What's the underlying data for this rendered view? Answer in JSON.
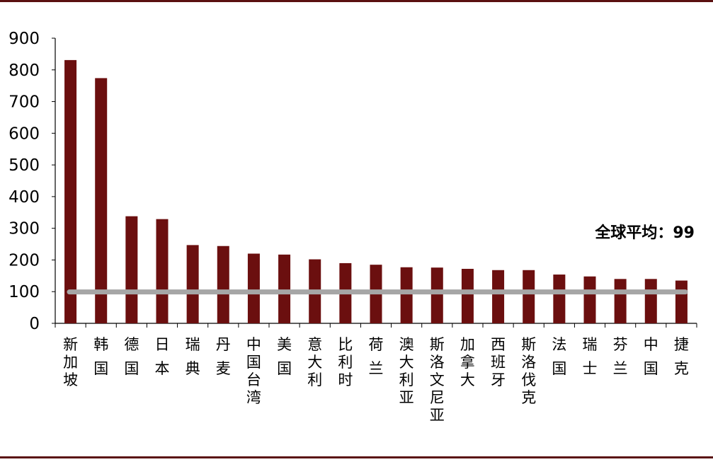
{
  "chart_data": {
    "type": "bar",
    "title": "",
    "xlabel": "",
    "ylabel": "",
    "ylim": [
      0,
      900
    ],
    "yticks": [
      0,
      100,
      200,
      300,
      400,
      500,
      600,
      700,
      800,
      900
    ],
    "grid": false,
    "categories": [
      "新加坡",
      "韩国",
      "德国",
      "日本",
      "瑞典",
      "丹麦",
      "中国台湾",
      "美国",
      "意大利",
      "比利时",
      "荷兰",
      "澳大利亚",
      "斯洛文尼亚",
      "加拿大",
      "西班牙",
      "斯洛伐克",
      "法国",
      "瑞士",
      "芬兰",
      "中国",
      "捷克"
    ],
    "values": [
      831,
      774,
      338,
      329,
      247,
      244,
      220,
      217,
      202,
      190,
      185,
      177,
      176,
      172,
      168,
      168,
      154,
      148,
      140,
      140,
      135
    ],
    "bar_color": "#6b0f0f",
    "reference_line": {
      "value": 99,
      "color": "#a6a6a6",
      "label": "全球平均：99"
    }
  }
}
